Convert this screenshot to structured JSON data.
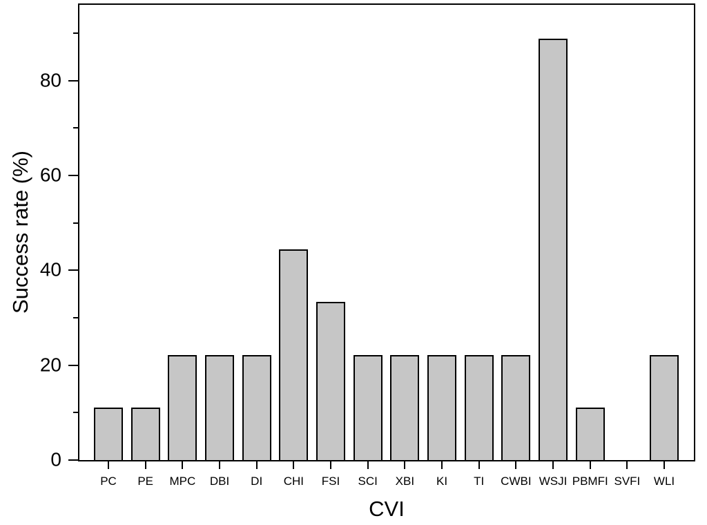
{
  "chart_data": {
    "type": "bar",
    "title": "",
    "xlabel": "CVI",
    "ylabel": "Success rate (%)",
    "categories": [
      "PC",
      "PE",
      "MPC",
      "DBI",
      "DI",
      "CHI",
      "FSI",
      "SCI",
      "XBI",
      "KI",
      "TI",
      "CWBI",
      "WSJI",
      "PBMFI",
      "SVFI",
      "WLI"
    ],
    "values": [
      11.1,
      11.1,
      22.2,
      22.2,
      22.2,
      44.4,
      33.3,
      22.2,
      22.2,
      22.2,
      22.2,
      22.2,
      88.9,
      11.1,
      0,
      22.2
    ],
    "ylim": [
      0,
      96
    ],
    "y_major_ticks": [
      0,
      20,
      40,
      60,
      80
    ],
    "y_minor_ticks": [
      10,
      30,
      50,
      70,
      90
    ],
    "grid": false,
    "legend": null,
    "bar_fill_color": "#c6c6c6",
    "bar_border_color": "#000000",
    "axis_color": "#000000"
  }
}
